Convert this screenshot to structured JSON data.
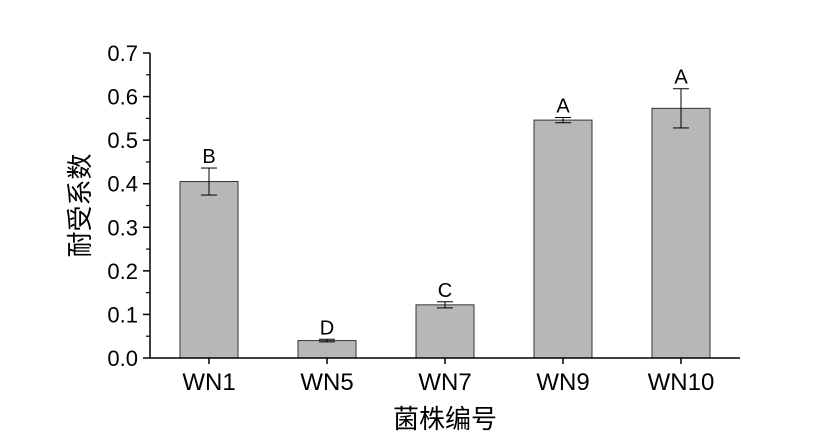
{
  "chart_data": {
    "type": "bar",
    "title": "",
    "xlabel": "菌株编号",
    "ylabel": "耐受系数",
    "categories": [
      "WN1",
      "WN5",
      "WN7",
      "WN9",
      "WN10"
    ],
    "values": [
      0.405,
      0.04,
      0.122,
      0.546,
      0.573
    ],
    "errors": [
      0.031,
      0.003,
      0.007,
      0.006,
      0.045
    ],
    "significance": [
      "B",
      "D",
      "C",
      "A",
      "A"
    ],
    "ylim": [
      0,
      0.7
    ],
    "yticks": [
      "0.0",
      "0.1",
      "0.2",
      "0.3",
      "0.4",
      "0.5",
      "0.6",
      "0.7"
    ],
    "grid": false,
    "bar_color": "#b7b7b7",
    "edge_color": "#333333"
  }
}
